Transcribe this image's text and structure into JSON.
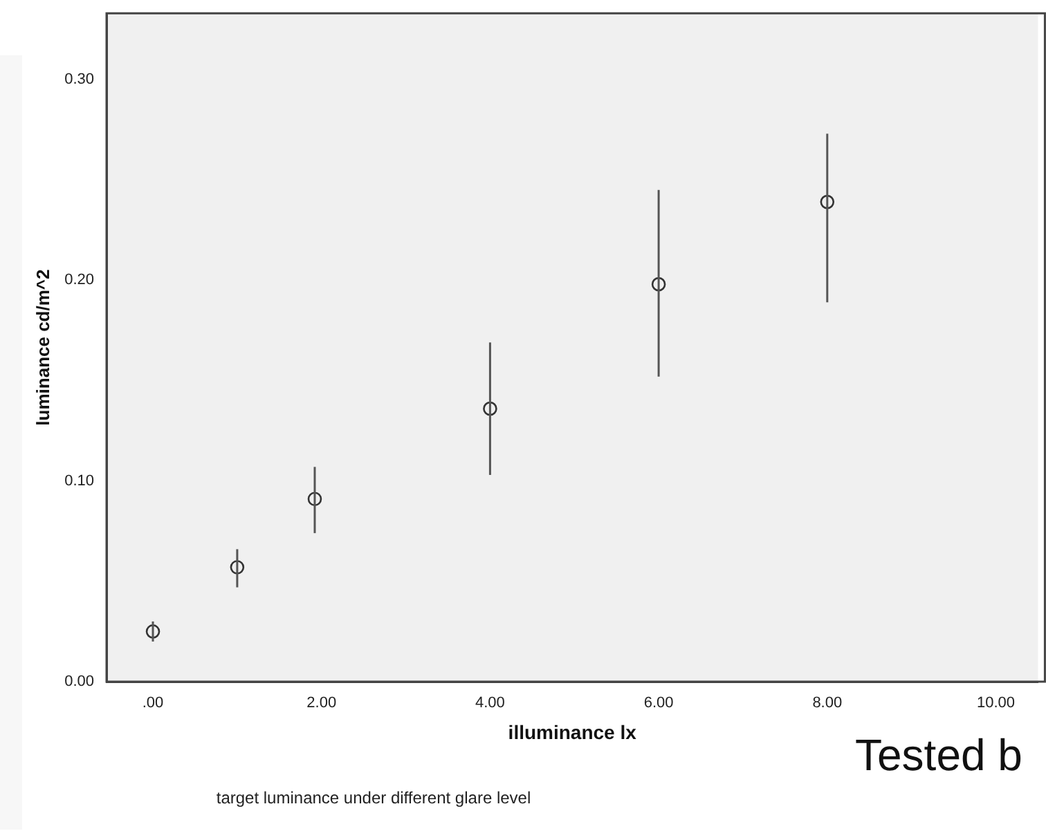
{
  "chart_data": {
    "type": "scatter",
    "x": [
      0,
      1,
      1.92,
      4,
      6,
      8
    ],
    "values": [
      0.025,
      0.057,
      0.091,
      0.136,
      0.198,
      0.239
    ],
    "errors": [
      [
        0.02,
        0.03
      ],
      [
        0.047,
        0.066
      ],
      [
        0.074,
        0.107
      ],
      [
        0.103,
        0.169
      ],
      [
        0.152,
        0.245
      ],
      [
        0.189,
        0.273
      ]
    ],
    "color": "#333333",
    "marker": "circle",
    "xlabel": "illuminance lx",
    "ylabel": "luminance cd/m^2",
    "xlim": [
      -0.55,
      10.5
    ],
    "ylim": [
      0,
      0.333
    ],
    "xticks": [
      {
        "value": 0,
        "label": ".00"
      },
      {
        "value": 2,
        "label": "2.00"
      },
      {
        "value": 4,
        "label": "4.00"
      },
      {
        "value": 6,
        "label": "6.00"
      },
      {
        "value": 8,
        "label": "8.00"
      },
      {
        "value": 10,
        "label": "10.00"
      }
    ],
    "yticks": [
      {
        "value": 0,
        "label": "0.00"
      },
      {
        "value": 0.1,
        "label": "0.10"
      },
      {
        "value": 0.2,
        "label": "0.20"
      },
      {
        "value": 0.3,
        "label": "0.30"
      }
    ],
    "grid": false,
    "legend": false,
    "annotations": [
      "target luminance under different glare level",
      "Tested b"
    ]
  }
}
